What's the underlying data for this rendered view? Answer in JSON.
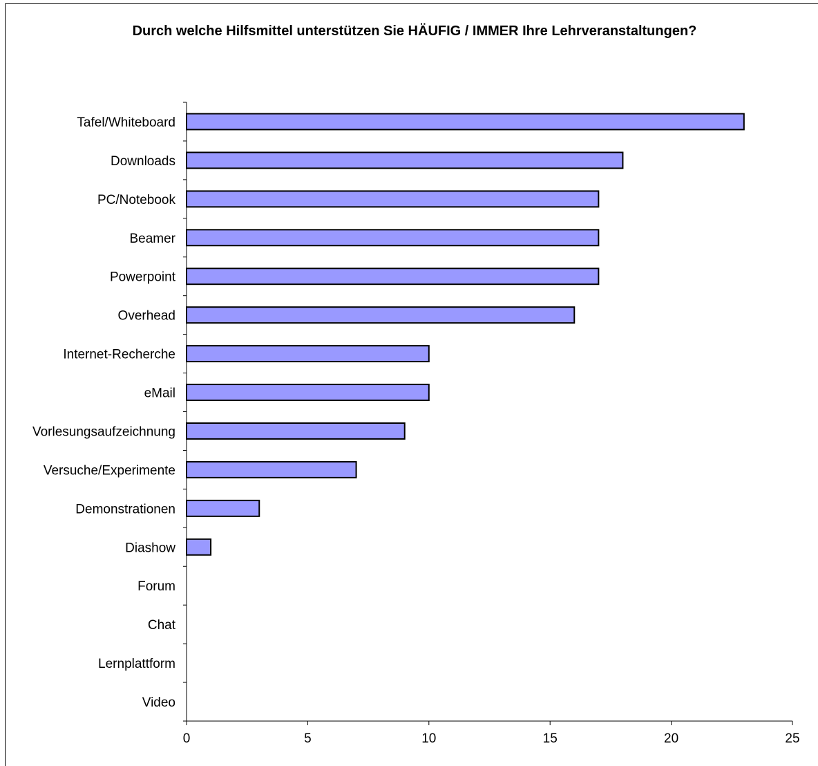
{
  "chart_data": {
    "type": "bar",
    "orientation": "horizontal",
    "title": "Durch welche Hilfsmittel unterstützen Sie HÄUFIG / IMMER Ihre Lehrveranstaltungen?",
    "xlabel": "",
    "ylabel": "",
    "categories": [
      "Tafel/Whiteboard",
      "Downloads",
      "PC/Notebook",
      "Beamer",
      "Powerpoint",
      "Overhead",
      "Internet-Recherche",
      "eMail",
      "Vorlesungsaufzeichnung",
      "Versuche/Experimente",
      "Demonstrationen",
      "Diashow",
      "Forum",
      "Chat",
      "Lernplattform",
      "Video"
    ],
    "values": [
      23,
      18,
      17,
      17,
      17,
      16,
      10,
      10,
      9,
      7,
      3,
      1,
      0,
      0,
      0,
      0
    ],
    "xlim": [
      0,
      25
    ],
    "xticks": [
      0,
      5,
      10,
      15,
      20,
      25
    ],
    "grid": false,
    "legend": "none",
    "bar_color": "#9999FF",
    "bar_edge_color": "#000000"
  }
}
